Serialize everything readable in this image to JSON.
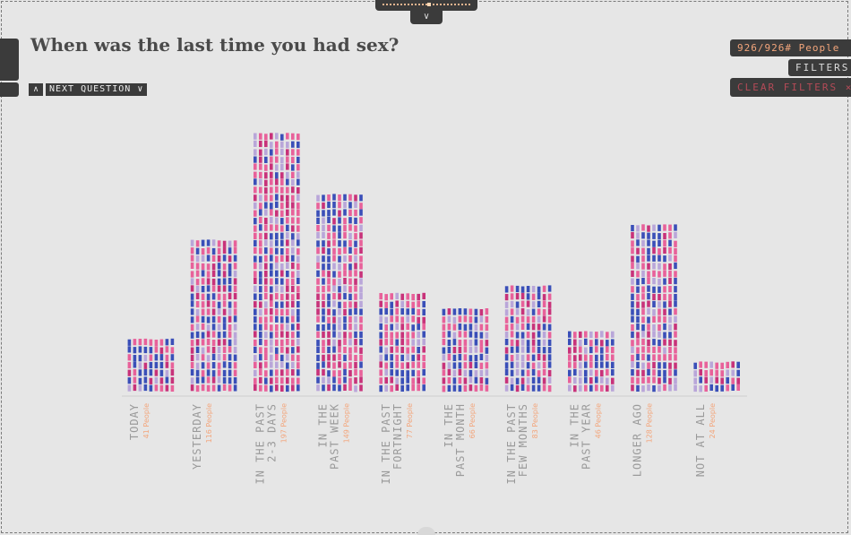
{
  "question": {
    "title": "When was the last time you had sex?",
    "next_label": "NEXT QUESTION",
    "up_icon": "chevron-up-icon",
    "down_icon": "chevron-down-icon"
  },
  "nav": {
    "collapse_icon": "double-chevron-down-icon"
  },
  "filters": {
    "people_count": "926/926# People",
    "filters_label": "FILTERS",
    "clear_label": "CLEAR FILTERS ×"
  },
  "colors": {
    "background": "#e6e6e6",
    "panel": "#3b3b3b",
    "accent": "#f3a57b",
    "label_gray": "#9a9a9a",
    "people_pink": "#e8619a",
    "people_magenta": "#c8327a",
    "people_blue": "#3a4fb8",
    "people_light": "#b9a6d9"
  },
  "chart_data": {
    "type": "bar",
    "title": "When was the last time you had sex?",
    "unit_suffix": " People",
    "categories": [
      [
        "TODAY"
      ],
      [
        "YESTERDAY"
      ],
      [
        "IN THE PAST",
        "2-3 DAYS"
      ],
      [
        "IN THE",
        "PAST WEEK"
      ],
      [
        "IN THE PAST",
        "FORTNIGHT"
      ],
      [
        "IN THE",
        "PAST MONTH"
      ],
      [
        "IN THE PAST",
        "FEW MONTHS"
      ],
      [
        "IN THE",
        "PAST YEAR"
      ],
      [
        "LONGER AGO"
      ],
      [
        "NOT AT ALL"
      ]
    ],
    "values": [
      41,
      116,
      197,
      149,
      77,
      66,
      83,
      46,
      128,
      24
    ],
    "ylim": [
      0,
      200
    ],
    "xlabel": "",
    "ylabel": ""
  }
}
